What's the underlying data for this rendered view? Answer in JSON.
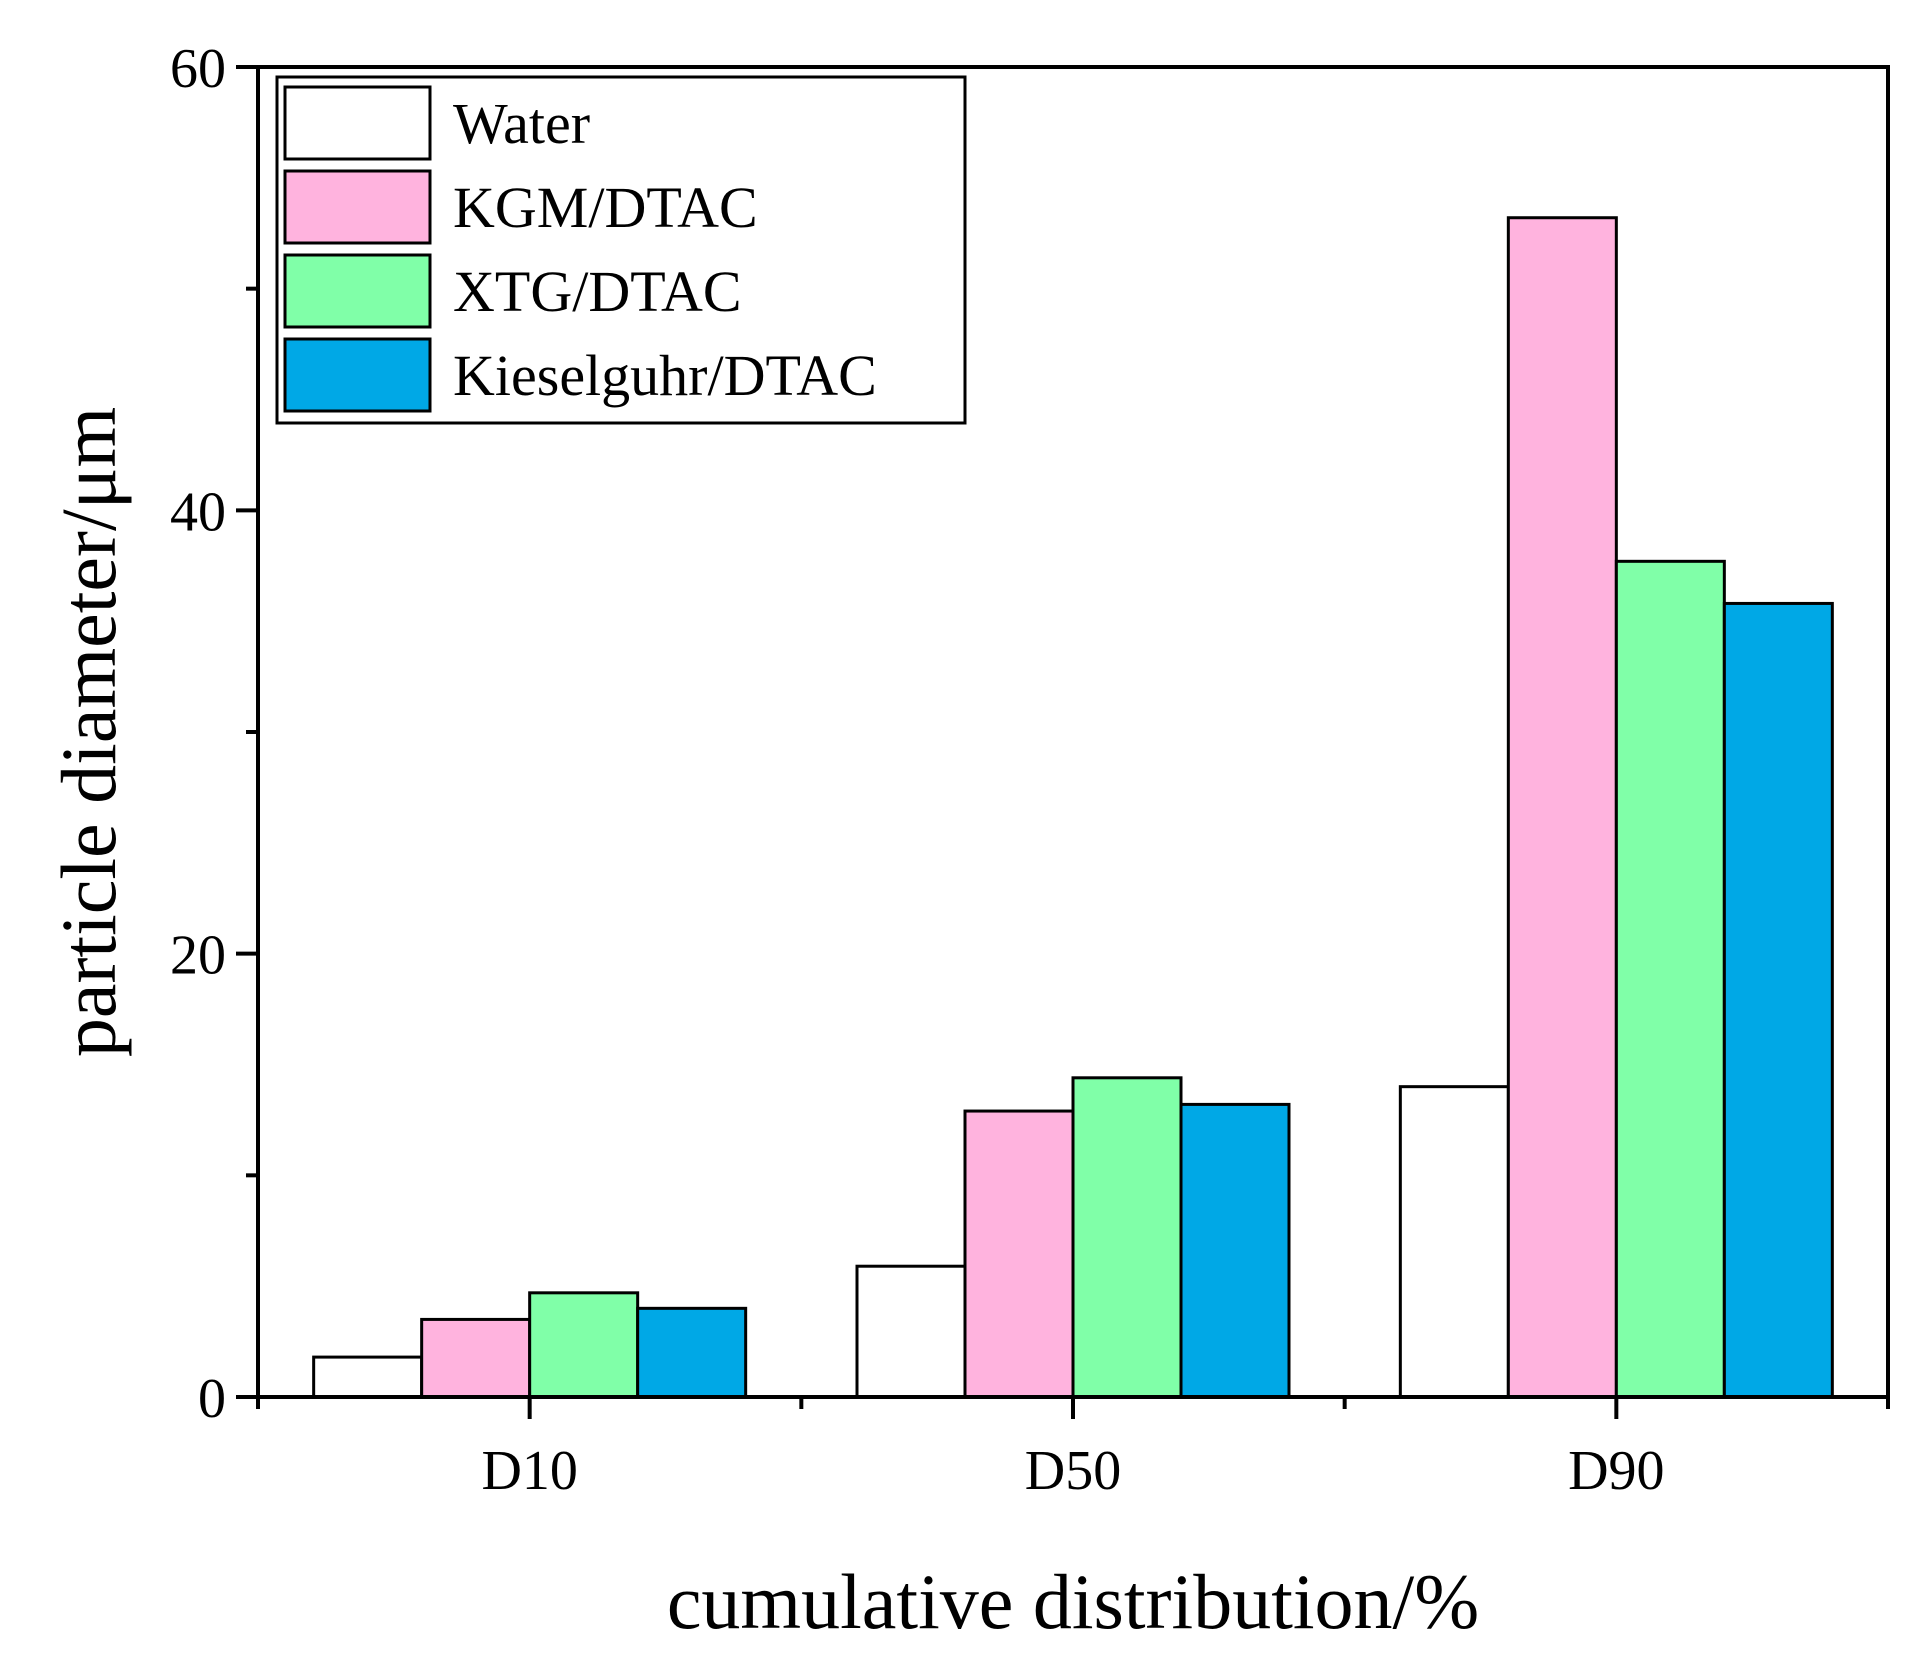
{
  "chart_data": {
    "type": "bar",
    "title": "",
    "xlabel": "cumulative distribution/%",
    "ylabel": "particle diameter/μm",
    "categories": [
      "D10",
      "D50",
      "D90"
    ],
    "ylim": [
      0,
      60
    ],
    "yticks": [
      {
        "value": 0,
        "label": "0"
      },
      {
        "value": 20,
        "label": "20"
      },
      {
        "value": 40,
        "label": "40"
      },
      {
        "value": 60,
        "label": "60"
      }
    ],
    "yminor_ticks": [
      10,
      30,
      50
    ],
    "grid": false,
    "legend_position": "top-left",
    "series": [
      {
        "name": "Water",
        "color": "#ffffff",
        "values": [
          1.8,
          5.9,
          14.0
        ]
      },
      {
        "name": "KGM/DTAC",
        "color": "#ffb3de",
        "values": [
          3.5,
          12.9,
          53.2
        ]
      },
      {
        "name": "XTG/DTAC",
        "color": "#80ffa8",
        "values": [
          4.7,
          14.4,
          37.7
        ]
      },
      {
        "name": "Kieselguhr/DTAC",
        "color": "#00a8e6",
        "values": [
          4.0,
          13.2,
          35.8
        ]
      }
    ]
  }
}
